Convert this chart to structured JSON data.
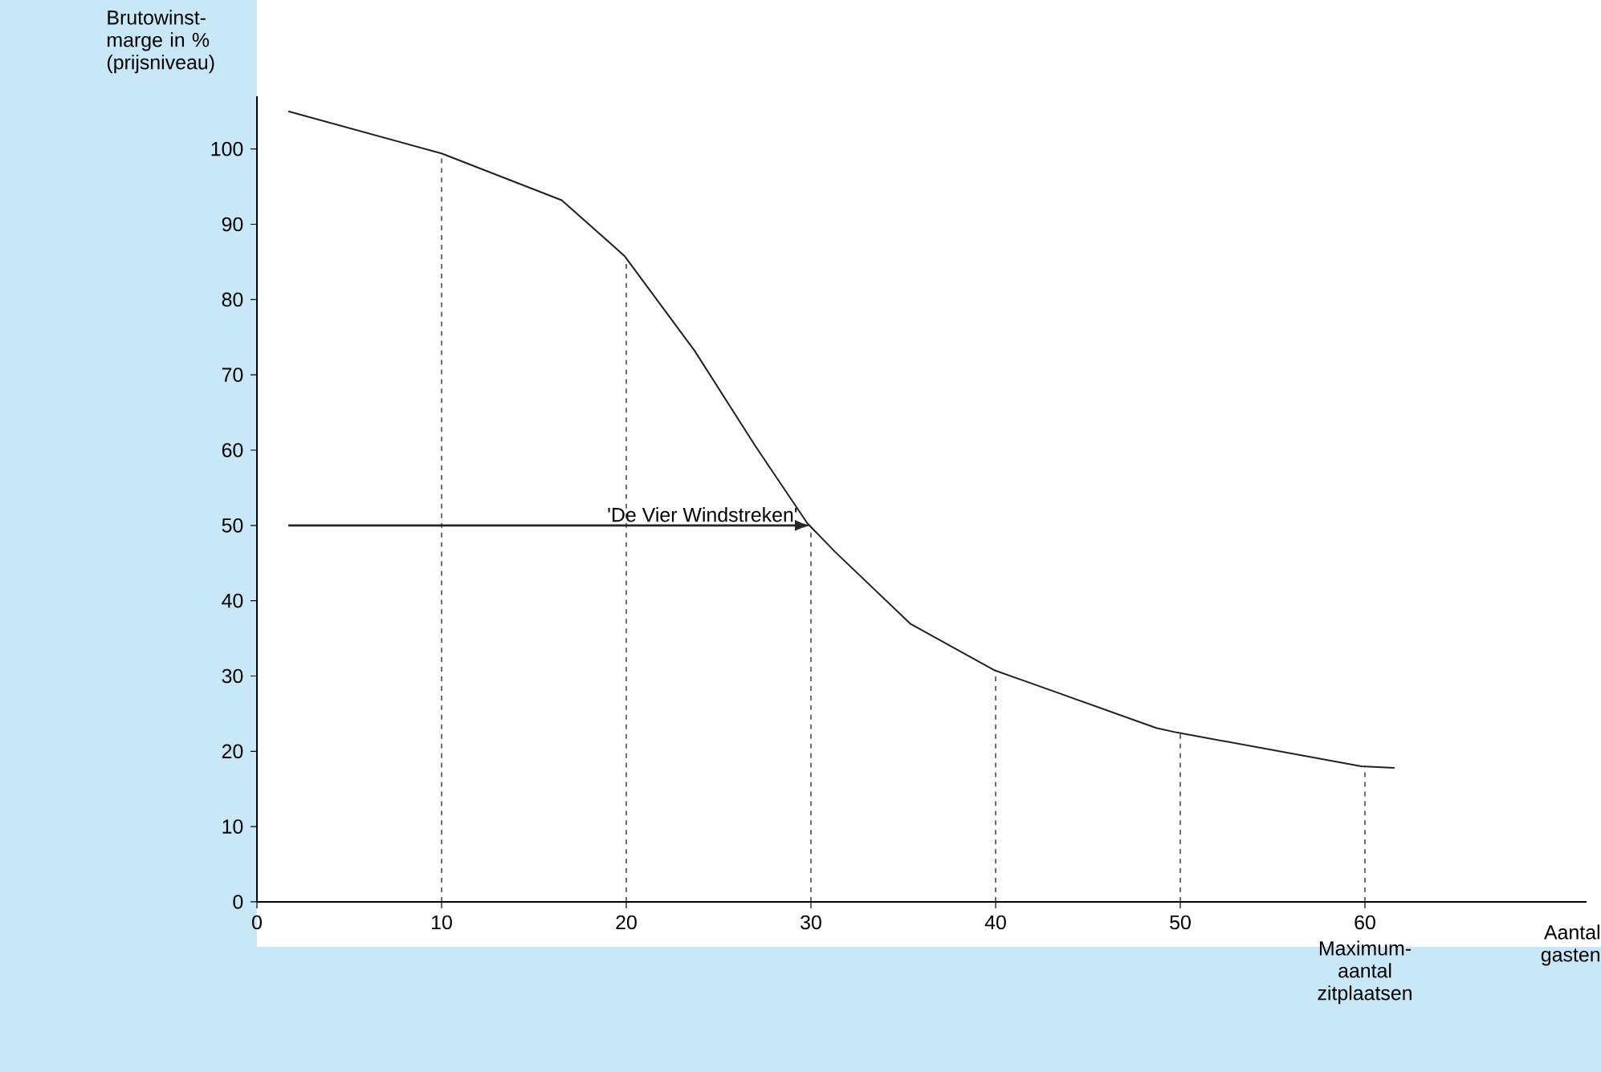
{
  "chart_data": {
    "type": "line",
    "xlabel": "Aantal gasten",
    "ylabel": "Brutowinst- marge in % (prijsniveau)",
    "x": [
      1.7,
      10,
      16.5,
      19.9,
      23.7,
      27,
      29.8,
      31.3,
      35.4,
      39.9,
      42.3,
      48.7,
      49.8,
      59.8,
      61.6
    ],
    "series": [
      {
        "color": "#231f20",
        "values": [
          105,
          99.4,
          93.2,
          85.8,
          73.2,
          60.5,
          50.3,
          46.5,
          36.9,
          30.8,
          28.7,
          23.1,
          22.5,
          18,
          17.8
        ]
      }
    ],
    "xlim": [
      0,
      72
    ],
    "ylim": [
      0,
      107
    ],
    "xticks": [
      0,
      10,
      20,
      30,
      40,
      50,
      60
    ],
    "yticks": [
      0,
      10,
      20,
      30,
      40,
      50,
      60,
      70,
      80,
      90,
      100
    ],
    "ref_lines": [
      {
        "axis": "x",
        "value": 10,
        "line_style": "dashed"
      },
      {
        "axis": "x",
        "value": 20,
        "line_style": "dashed"
      },
      {
        "axis": "x",
        "value": 30,
        "line_style": "dashed"
      },
      {
        "axis": "x",
        "value": 40,
        "line_style": "dashed"
      },
      {
        "axis": "x",
        "value": 50,
        "line_style": "dashed"
      },
      {
        "axis": "x",
        "value": 60,
        "line_style": "dashed"
      }
    ],
    "annotations": [
      {
        "text": "'De Vier Windstreken'",
        "x": 30,
        "y": 50
      },
      {
        "text": "Maximum- aantal zitplaatsen",
        "x": 60,
        "y": 0
      }
    ],
    "grid": false,
    "marker": "none",
    "line_style": "solid"
  }
}
